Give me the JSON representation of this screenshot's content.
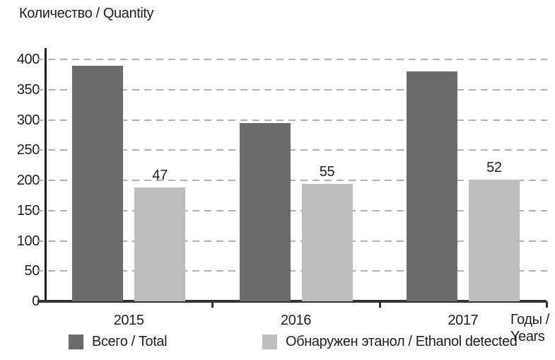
{
  "title": "Количество / Quantity",
  "x_axis_unit": {
    "line1": "Годы /",
    "line2": "Years"
  },
  "chart_data": {
    "type": "bar",
    "title": "Количество / Quantity",
    "ylabel": "Количество / Quantity",
    "xlabel": "Годы / Years",
    "categories": [
      "2015",
      "2016",
      "2017"
    ],
    "series": [
      {
        "name": "Всего / Total",
        "color": "#6b6b6b",
        "values": [
          390,
          295,
          380
        ],
        "data_labels": [
          "",
          "",
          ""
        ]
      },
      {
        "name": "Обнаружен этанол / Ethanol detected",
        "color": "#bdbdbd",
        "values": [
          188,
          194,
          201
        ],
        "data_labels": [
          "47",
          "55",
          "52"
        ]
      }
    ],
    "ylim": [
      0,
      400
    ],
    "ytick_step": 50,
    "y_ticks": [
      0,
      50,
      100,
      150,
      200,
      250,
      300,
      350,
      400
    ],
    "grid": "dashed-horizontal",
    "grid_color": "#b1b1b1",
    "axis_color": "#333333",
    "text_color": "#1e1e28",
    "legend_position": "bottom"
  }
}
